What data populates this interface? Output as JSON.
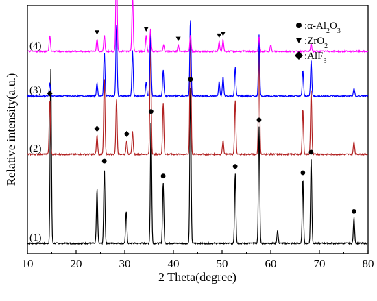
{
  "chart_data": {
    "type": "line",
    "xlabel": "2 Theta(degree)",
    "ylabel": "Relative intensity(a.u.)",
    "xlim": [
      10,
      80
    ],
    "x_ticks": [
      10,
      20,
      30,
      40,
      50,
      60,
      70,
      80
    ],
    "y_ticks_shown": false,
    "grid": false,
    "legend": {
      "placement": "top-right",
      "entries": [
        {
          "marker": "circle",
          "text": ":α-Al",
          "sub1": "2",
          "mid": "O",
          "sub2": "3"
        },
        {
          "marker": "triangle-down",
          "text": ":ZrO",
          "sub1": "2",
          "mid": "",
          "sub2": ""
        },
        {
          "marker": "diamond",
          "text": ":AlF",
          "sub1": "3",
          "mid": "",
          "sub2": ""
        }
      ]
    },
    "series": [
      {
        "name": "(1)",
        "color": "#000000",
        "offset": 0,
        "peaks": [
          {
            "x": 14.8,
            "h": 270
          },
          {
            "x": 24.3,
            "h": 85
          },
          {
            "x": 25.8,
            "h": 118
          },
          {
            "x": 30.3,
            "h": 50
          },
          {
            "x": 35.4,
            "h": 195
          },
          {
            "x": 37.9,
            "h": 95
          },
          {
            "x": 43.5,
            "h": 245
          },
          {
            "x": 52.7,
            "h": 110
          },
          {
            "x": 57.6,
            "h": 182
          },
          {
            "x": 61.4,
            "h": 20
          },
          {
            "x": 66.6,
            "h": 100
          },
          {
            "x": 68.3,
            "h": 132
          },
          {
            "x": 77.1,
            "h": 40
          }
        ],
        "markers": [
          {
            "x": 25.8,
            "type": "circle"
          },
          {
            "x": 35.4,
            "type": "circle"
          },
          {
            "x": 37.9,
            "type": "circle"
          },
          {
            "x": 43.5,
            "type": "circle"
          },
          {
            "x": 52.7,
            "type": "circle"
          },
          {
            "x": 57.6,
            "type": "circle"
          },
          {
            "x": 66.6,
            "type": "circle"
          },
          {
            "x": 68.3,
            "type": "circle"
          },
          {
            "x": 77.1,
            "type": "circle"
          }
        ]
      },
      {
        "name": "(2)",
        "color": "#b22222",
        "offset": 130,
        "peaks": [
          {
            "x": 14.6,
            "h": 85
          },
          {
            "x": 24.3,
            "h": 30
          },
          {
            "x": 25.8,
            "h": 120
          },
          {
            "x": 28.3,
            "h": 85
          },
          {
            "x": 30.4,
            "h": 22
          },
          {
            "x": 31.6,
            "h": 35
          },
          {
            "x": 35.3,
            "h": 175
          },
          {
            "x": 37.9,
            "h": 80
          },
          {
            "x": 43.5,
            "h": 200
          },
          {
            "x": 50.2,
            "h": 22
          },
          {
            "x": 52.7,
            "h": 85
          },
          {
            "x": 57.6,
            "h": 160
          },
          {
            "x": 66.6,
            "h": 70
          },
          {
            "x": 68.3,
            "h": 100
          },
          {
            "x": 77.1,
            "h": 20
          }
        ],
        "markers": [
          {
            "x": 14.6,
            "type": "diamond"
          },
          {
            "x": 24.3,
            "type": "diamond"
          },
          {
            "x": 30.4,
            "type": "diamond"
          }
        ]
      },
      {
        "name": "(3)",
        "color": "#0000ff",
        "offset": 215,
        "peaks": [
          {
            "x": 14.6,
            "h": 20
          },
          {
            "x": 24.3,
            "h": 20
          },
          {
            "x": 25.8,
            "h": 70
          },
          {
            "x": 28.3,
            "h": 110
          },
          {
            "x": 31.6,
            "h": 70
          },
          {
            "x": 34.4,
            "h": 22
          },
          {
            "x": 35.3,
            "h": 100
          },
          {
            "x": 37.9,
            "h": 40
          },
          {
            "x": 43.5,
            "h": 120
          },
          {
            "x": 49.4,
            "h": 22
          },
          {
            "x": 50.2,
            "h": 30
          },
          {
            "x": 52.7,
            "h": 45
          },
          {
            "x": 57.6,
            "h": 95
          },
          {
            "x": 66.6,
            "h": 40
          },
          {
            "x": 68.3,
            "h": 55
          },
          {
            "x": 77.1,
            "h": 12
          }
        ],
        "markers": []
      },
      {
        "name": "(4)",
        "color": "#ff00ff",
        "offset": 280,
        "peaks": [
          {
            "x": 14.6,
            "h": 25
          },
          {
            "x": 24.3,
            "h": 20
          },
          {
            "x": 25.8,
            "h": 25
          },
          {
            "x": 28.3,
            "h": 150
          },
          {
            "x": 31.6,
            "h": 90
          },
          {
            "x": 34.4,
            "h": 25
          },
          {
            "x": 35.3,
            "h": 35
          },
          {
            "x": 38.0,
            "h": 10
          },
          {
            "x": 41.0,
            "h": 10
          },
          {
            "x": 43.5,
            "h": 25
          },
          {
            "x": 49.4,
            "h": 15
          },
          {
            "x": 50.2,
            "h": 18
          },
          {
            "x": 57.6,
            "h": 22
          },
          {
            "x": 60.0,
            "h": 10
          },
          {
            "x": 68.3,
            "h": 12
          }
        ],
        "markers": [
          {
            "x": 24.3,
            "type": "triangle"
          },
          {
            "x": 28.3,
            "type": "triangle"
          },
          {
            "x": 31.6,
            "type": "triangle"
          },
          {
            "x": 34.4,
            "type": "triangle"
          },
          {
            "x": 41.0,
            "type": "triangle"
          },
          {
            "x": 49.4,
            "type": "triangle"
          },
          {
            "x": 50.2,
            "type": "triangle"
          }
        ]
      }
    ]
  }
}
